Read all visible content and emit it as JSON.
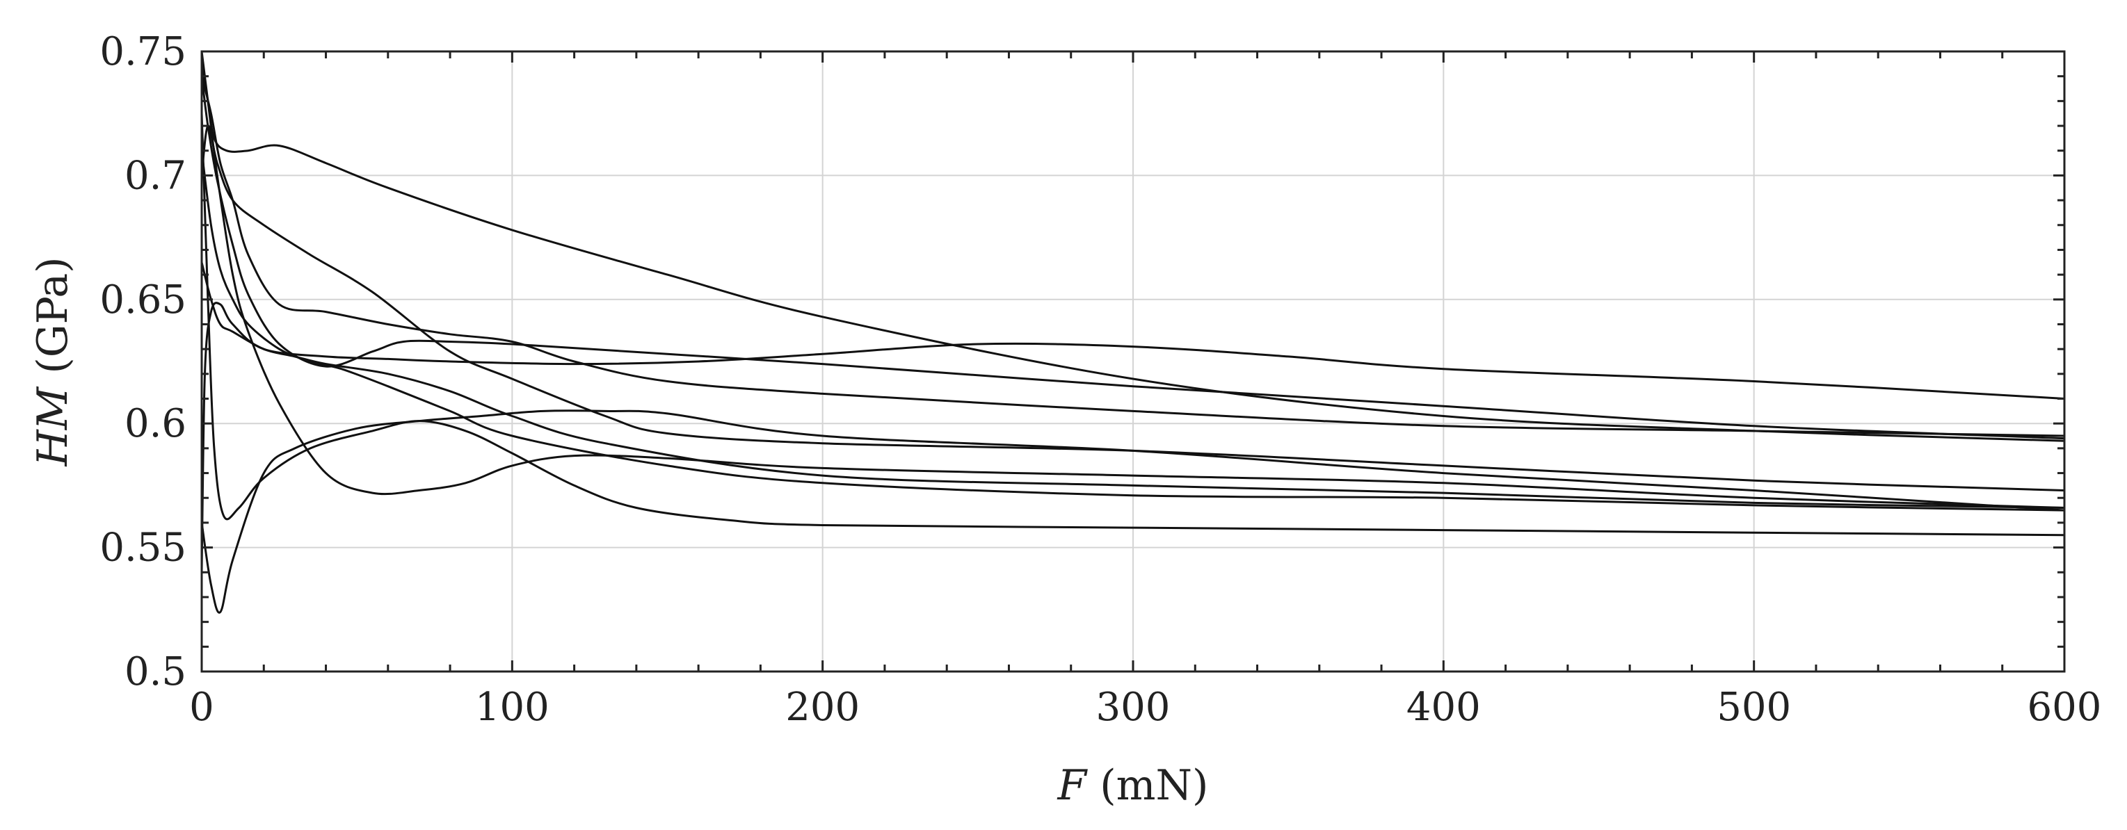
{
  "chart_data": {
    "type": "line",
    "xlabel": {
      "italic": "F",
      "unit": " (mN)"
    },
    "ylabel": {
      "italic": "HM",
      "unit": " (GPa)"
    },
    "xlim": [
      0,
      600
    ],
    "ylim": [
      0.5,
      0.75
    ],
    "xticks": [
      0,
      100,
      200,
      300,
      400,
      500,
      600
    ],
    "xtick_labels": [
      "0",
      "100",
      "200",
      "300",
      "400",
      "500",
      "600"
    ],
    "yticks": [
      0.5,
      0.55,
      0.6,
      0.65,
      0.7,
      0.75
    ],
    "ytick_labels": [
      "0.5",
      "0.55",
      "0.6",
      "0.65",
      "0.7",
      "0.75"
    ],
    "grid": true,
    "legend": "none",
    "series": [
      {
        "x": [
          0,
          2,
          4,
          8,
          15,
          25,
          40,
          60,
          100,
          150,
          200,
          300,
          400,
          500,
          600
        ],
        "y": [
          0.745,
          0.73,
          0.715,
          0.71,
          0.71,
          0.712,
          0.705,
          0.695,
          0.678,
          0.66,
          0.643,
          0.618,
          0.603,
          0.597,
          0.593
        ]
      },
      {
        "x": [
          0,
          2,
          5,
          10,
          15,
          25,
          40,
          55,
          65,
          80,
          100,
          150,
          200,
          300,
          400,
          500,
          600
        ],
        "y": [
          0.74,
          0.72,
          0.698,
          0.672,
          0.652,
          0.632,
          0.623,
          0.629,
          0.633,
          0.633,
          0.632,
          0.628,
          0.624,
          0.615,
          0.607,
          0.599,
          0.594
        ]
      },
      {
        "x": [
          0,
          1,
          3,
          6,
          10,
          20,
          40,
          60,
          80,
          120,
          160,
          200,
          250,
          300,
          350,
          400,
          500,
          600
        ],
        "y": [
          0.54,
          0.62,
          0.645,
          0.648,
          0.64,
          0.63,
          0.627,
          0.626,
          0.625,
          0.624,
          0.625,
          0.628,
          0.632,
          0.631,
          0.627,
          0.622,
          0.617,
          0.61
        ]
      },
      {
        "x": [
          0,
          3,
          6,
          10,
          15,
          25,
          40,
          60,
          80,
          100,
          120,
          150,
          200,
          300,
          400,
          500,
          600
        ],
        "y": [
          0.74,
          0.725,
          0.705,
          0.69,
          0.668,
          0.648,
          0.645,
          0.64,
          0.636,
          0.633,
          0.625,
          0.617,
          0.612,
          0.605,
          0.599,
          0.597,
          0.595
        ]
      },
      {
        "x": [
          0,
          2,
          5,
          10,
          20,
          35,
          55,
          80,
          100,
          130,
          150,
          200,
          300,
          400,
          500,
          600
        ],
        "y": [
          0.7,
          0.72,
          0.705,
          0.69,
          0.68,
          0.668,
          0.653,
          0.629,
          0.618,
          0.603,
          0.596,
          0.592,
          0.589,
          0.583,
          0.577,
          0.573
        ]
      },
      {
        "x": [
          0,
          3,
          6,
          10,
          20,
          30,
          40,
          60,
          80,
          100,
          130,
          200,
          300,
          400,
          500,
          600
        ],
        "y": [
          0.665,
          0.65,
          0.64,
          0.637,
          0.63,
          0.627,
          0.624,
          0.62,
          0.613,
          0.603,
          0.592,
          0.579,
          0.575,
          0.572,
          0.568,
          0.566
        ]
      },
      {
        "x": [
          0,
          3,
          6,
          10,
          15,
          25,
          35,
          45,
          60,
          80,
          100,
          150,
          200,
          300,
          400,
          500,
          600
        ],
        "y": [
          0.71,
          0.68,
          0.662,
          0.65,
          0.64,
          0.63,
          0.625,
          0.622,
          0.615,
          0.605,
          0.595,
          0.583,
          0.576,
          0.571,
          0.57,
          0.567,
          0.565
        ]
      },
      {
        "x": [
          0,
          2,
          5,
          10,
          15,
          25,
          40,
          55,
          70,
          85,
          100,
          120,
          150,
          200,
          300,
          400,
          500,
          600
        ],
        "y": [
          0.75,
          0.73,
          0.7,
          0.66,
          0.637,
          0.608,
          0.58,
          0.572,
          0.573,
          0.576,
          0.583,
          0.587,
          0.586,
          0.582,
          0.579,
          0.576,
          0.57,
          0.566
        ]
      },
      {
        "x": [
          0,
          3,
          6,
          10,
          20,
          30,
          50,
          70,
          90,
          110,
          130,
          150,
          200,
          300,
          400,
          500,
          600
        ],
        "y": [
          0.56,
          0.535,
          0.524,
          0.545,
          0.58,
          0.59,
          0.598,
          0.601,
          0.603,
          0.605,
          0.605,
          0.604,
          0.595,
          0.589,
          0.58,
          0.573,
          0.565
        ]
      },
      {
        "x": [
          0,
          2,
          4,
          7,
          12,
          20,
          35,
          55,
          70,
          85,
          100,
          120,
          140,
          170,
          200,
          300,
          400,
          500,
          600
        ],
        "y": [
          0.725,
          0.65,
          0.59,
          0.563,
          0.566,
          0.578,
          0.59,
          0.597,
          0.601,
          0.597,
          0.588,
          0.575,
          0.566,
          0.561,
          0.559,
          0.558,
          0.557,
          0.556,
          0.555
        ]
      }
    ]
  }
}
